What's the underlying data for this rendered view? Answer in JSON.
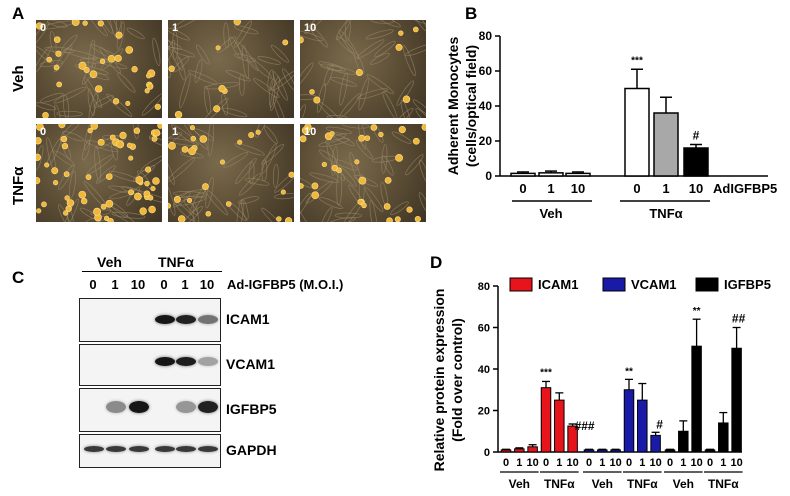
{
  "panel_a": {
    "label": "A",
    "rows": [
      "Veh",
      "TNFα"
    ],
    "cols": [
      "0",
      "1",
      "10"
    ]
  },
  "panel_b": {
    "label": "B",
    "ylabel_line1": "Adherent Monocytes",
    "ylabel_line2": "(cells/optical field)",
    "ticks": [
      "0",
      "20",
      "40",
      "60",
      "80"
    ],
    "xcats": [
      "0",
      "1",
      "10",
      "0",
      "1",
      "10"
    ],
    "xcat_suffix": "AdIGFBP5",
    "groups": [
      "Veh",
      "TNFα"
    ],
    "annot_stars": "***",
    "annot_hash": "#"
  },
  "panel_c": {
    "label": "C",
    "groups": [
      "Veh",
      "TNFα"
    ],
    "lanes": [
      "0",
      "1",
      "10",
      "0",
      "1",
      "10"
    ],
    "lane_suffix": "Ad-IGFBP5 (M.O.I.)",
    "proteins": [
      "ICAM1",
      "VCAM1",
      "IGFBP5",
      "GAPDH"
    ]
  },
  "panel_d": {
    "label": "D",
    "ylabel_line1": "Relative protein expression",
    "ylabel_line2": "(Fold over control)",
    "ticks": [
      "0",
      "20",
      "40",
      "60",
      "80"
    ],
    "legend": [
      "ICAM1",
      "VCAM1",
      "IGFBP5"
    ],
    "xcats": [
      "0",
      "1",
      "10",
      "0",
      "1",
      "10",
      "0",
      "1",
      "10",
      "0",
      "1",
      "10",
      "0",
      "1",
      "10",
      "0",
      "1",
      "10"
    ],
    "groups": [
      "Veh",
      "TNFα",
      "Veh",
      "TNFα",
      "Veh",
      "TNFα"
    ],
    "annotations": [
      "***",
      "###",
      "**",
      "#",
      "**",
      "##"
    ]
  },
  "chart_data": [
    {
      "type": "bar",
      "panel": "B",
      "categories": [
        "Veh 0",
        "Veh 1",
        "Veh 10",
        "TNFα 0",
        "TNFα 1",
        "TNFα 10"
      ],
      "values": [
        1.5,
        1.8,
        1.5,
        50,
        36,
        16
      ],
      "errors": [
        0.8,
        1.0,
        0.8,
        11,
        9,
        2
      ],
      "colors": [
        "#ffffff",
        "#ffffff",
        "#ffffff",
        "#ffffff",
        "#a8a8a8",
        "#000000"
      ],
      "ylabel": "Adherent Monocytes (cells/optical field)",
      "ylim": [
        0,
        80
      ]
    },
    {
      "type": "bar",
      "panel": "D",
      "categories": [
        "Veh 0",
        "Veh 1",
        "Veh 10",
        "TNFα 0",
        "TNFα 1",
        "TNFα 10"
      ],
      "series": [
        {
          "name": "ICAM1",
          "color": "#e8141c",
          "values": [
            1,
            1.5,
            2.5,
            31,
            25,
            12.5
          ],
          "errors": [
            0.3,
            0.5,
            1,
            3,
            3.5,
            1
          ]
        },
        {
          "name": "VCAM1",
          "color": "#1a1aa8",
          "values": [
            1,
            1,
            1,
            30,
            25,
            8
          ],
          "errors": [
            0.3,
            0.3,
            0.3,
            5,
            8,
            1.5
          ]
        },
        {
          "name": "IGFBP5",
          "color": "#000000",
          "values": [
            1,
            10,
            51,
            1,
            14,
            50
          ],
          "errors": [
            0.3,
            5,
            13,
            0.3,
            5,
            10
          ]
        }
      ],
      "ylabel": "Relative protein expression (Fold over control)",
      "ylim": [
        0,
        80
      ]
    }
  ]
}
